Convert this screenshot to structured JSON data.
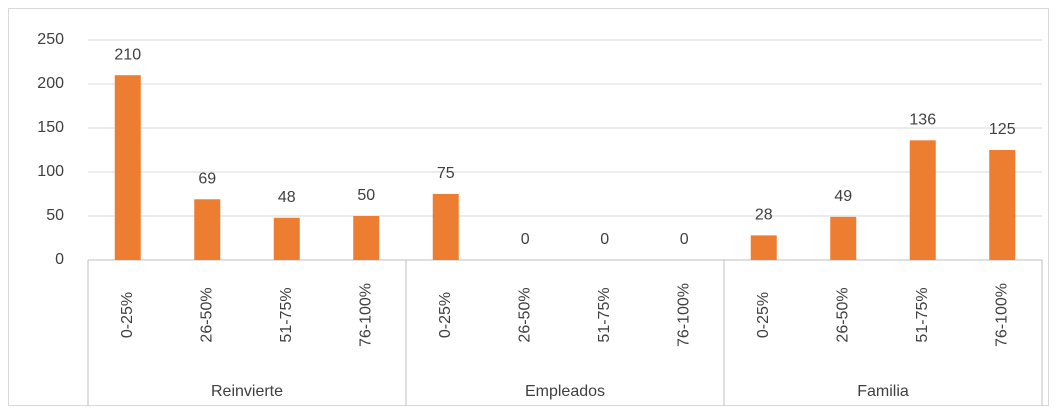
{
  "chart_data": {
    "type": "bar",
    "color": "#ed7d31",
    "ylim": [
      0,
      250
    ],
    "yticks": [
      0,
      50,
      100,
      150,
      200,
      250
    ],
    "grid": true,
    "groups": [
      {
        "name": "Reinvierte",
        "categories": [
          "0-25%",
          "26-50%",
          "51-75%",
          "76-100%"
        ],
        "values": [
          210,
          69,
          48,
          50
        ]
      },
      {
        "name": "Empleados",
        "categories": [
          "0-25%",
          "26-50%",
          "51-75%",
          "76-100%"
        ],
        "values": [
          75,
          0,
          0,
          0
        ]
      },
      {
        "name": "Familia",
        "categories": [
          "0-25%",
          "26-50%",
          "51-75%",
          "76-100%"
        ],
        "values": [
          28,
          49,
          136,
          125
        ]
      }
    ]
  }
}
